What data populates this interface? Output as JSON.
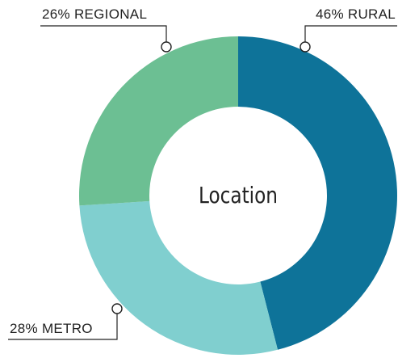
{
  "chart_data": {
    "type": "donut",
    "title": "Location",
    "categories": [
      "RURAL",
      "METRO",
      "REGIONAL"
    ],
    "values": [
      46,
      28,
      26
    ],
    "value_labels": [
      "46%",
      "28%",
      "26%"
    ],
    "colors": [
      "#0e7399",
      "#80cfcf",
      "#6cbf93"
    ]
  }
}
